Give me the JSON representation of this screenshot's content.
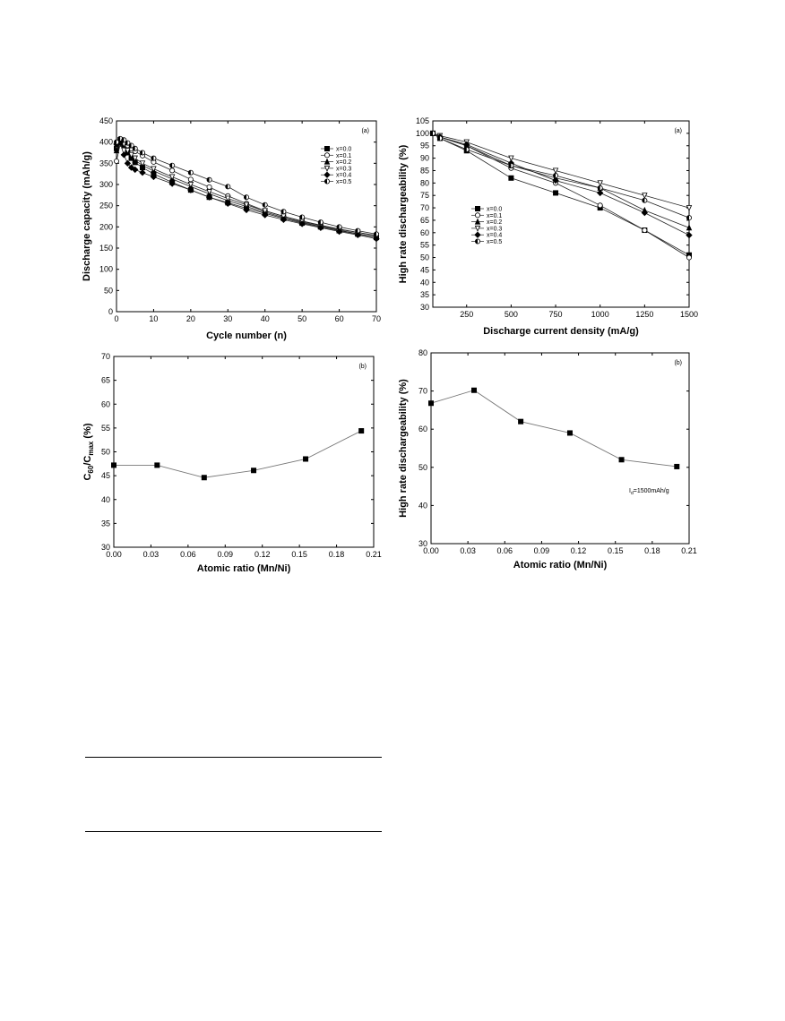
{
  "chart_data": [
    {
      "type": "line",
      "panel_label": "(a)",
      "xlabel": "Cycle number (n)",
      "ylabel": "Discharge capacity (mAh/g)",
      "xlim": [
        0,
        70
      ],
      "ylim": [
        0,
        450
      ],
      "xticks": [
        0,
        10,
        20,
        30,
        40,
        50,
        60,
        70
      ],
      "yticks": [
        0,
        50,
        100,
        150,
        200,
        250,
        300,
        350,
        400,
        450
      ],
      "legend_position": "top-right",
      "series": [
        {
          "name": "x=0.0",
          "marker": "square-filled",
          "x": [
            0,
            1,
            2,
            3,
            4,
            5,
            7,
            10,
            15,
            20,
            25,
            30,
            35,
            40,
            45,
            50,
            55,
            60,
            65,
            70
          ],
          "y": [
            385,
            400,
            395,
            375,
            362,
            352,
            340,
            325,
            305,
            287,
            270,
            257,
            244,
            232,
            220,
            209,
            200,
            191,
            183,
            175
          ]
        },
        {
          "name": "x=0.1",
          "marker": "circle-open",
          "x": [
            0,
            1,
            2,
            3,
            4,
            5,
            7,
            10,
            15,
            20,
            25,
            30,
            35,
            40,
            45,
            50,
            55,
            60,
            65,
            70
          ],
          "y": [
            355,
            395,
            400,
            392,
            385,
            378,
            368,
            353,
            333,
            312,
            294,
            273,
            255,
            238,
            225,
            213,
            203,
            194,
            187,
            180
          ]
        },
        {
          "name": "x=0.2",
          "marker": "triangle-filled",
          "x": [
            0,
            1,
            2,
            3,
            4,
            5,
            7,
            10,
            15,
            20,
            25,
            30,
            35,
            40,
            45,
            50,
            55,
            60,
            65,
            70
          ],
          "y": [
            380,
            398,
            392,
            375,
            365,
            357,
            345,
            332,
            313,
            295,
            278,
            262,
            248,
            235,
            222,
            211,
            201,
            192,
            184,
            176
          ]
        },
        {
          "name": "x=0.3",
          "marker": "triangle-down-open",
          "x": [
            0,
            1,
            2,
            3,
            4,
            5,
            7,
            10,
            15,
            20,
            25,
            30,
            35,
            40,
            45,
            50,
            55,
            60,
            65,
            70
          ],
          "y": [
            390,
            405,
            395,
            380,
            370,
            362,
            350,
            337,
            318,
            300,
            283,
            267,
            252,
            238,
            225,
            214,
            204,
            195,
            187,
            179
          ]
        },
        {
          "name": "x=0.4",
          "marker": "diamond-filled",
          "x": [
            0,
            1,
            2,
            3,
            4,
            5,
            7,
            10,
            15,
            20,
            25,
            30,
            35,
            40,
            45,
            50,
            55,
            60,
            65,
            70
          ],
          "y": [
            395,
            398,
            370,
            350,
            340,
            335,
            328,
            318,
            302,
            287,
            270,
            255,
            240,
            228,
            217,
            207,
            198,
            189,
            181,
            172
          ]
        },
        {
          "name": "x=0.5",
          "marker": "circle-left-open",
          "x": [
            0,
            1,
            2,
            3,
            4,
            5,
            7,
            10,
            15,
            20,
            25,
            30,
            35,
            40,
            45,
            50,
            55,
            60,
            65,
            70
          ],
          "y": [
            400,
            408,
            405,
            398,
            392,
            385,
            375,
            362,
            345,
            328,
            311,
            295,
            270,
            252,
            236,
            223,
            211,
            200,
            191,
            183
          ]
        }
      ]
    },
    {
      "type": "line",
      "panel_label": "(a)",
      "xlabel": "Discharge current density (mA/g)",
      "ylabel": "High rate dischargeability (%)",
      "xlim": [
        60,
        1500
      ],
      "ylim": [
        30,
        105
      ],
      "xticks": [
        250,
        500,
        750,
        1000,
        1250,
        1500
      ],
      "yticks": [
        30,
        35,
        40,
        45,
        50,
        55,
        60,
        65,
        70,
        75,
        80,
        85,
        90,
        95,
        100,
        105
      ],
      "legend_position": "center-left",
      "series": [
        {
          "name": "x=0.0",
          "marker": "square-filled",
          "x": [
            60,
            100,
            250,
            500,
            750,
            1000,
            1250,
            1500
          ],
          "y": [
            100,
            98,
            93,
            82,
            76,
            70,
            61,
            51
          ]
        },
        {
          "name": "x=0.1",
          "marker": "circle-open",
          "x": [
            60,
            100,
            250,
            500,
            750,
            1000,
            1250,
            1500
          ],
          "y": [
            100,
            98.5,
            95,
            86,
            80,
            71,
            61,
            50
          ]
        },
        {
          "name": "x=0.2",
          "marker": "triangle-filled",
          "x": [
            60,
            100,
            250,
            500,
            750,
            1000,
            1250,
            1500
          ],
          "y": [
            100,
            98.5,
            95,
            87,
            82,
            78,
            69,
            62
          ]
        },
        {
          "name": "x=0.3",
          "marker": "triangle-down-open",
          "x": [
            60,
            100,
            250,
            500,
            750,
            1000,
            1250,
            1500
          ],
          "y": [
            100,
            99,
            96.5,
            90,
            85,
            80,
            75,
            70
          ]
        },
        {
          "name": "x=0.4",
          "marker": "diamond-filled",
          "x": [
            60,
            100,
            250,
            500,
            750,
            1000,
            1250,
            1500
          ],
          "y": [
            100,
            98.5,
            95.5,
            88,
            81,
            76,
            68,
            59
          ]
        },
        {
          "name": "x=0.5",
          "marker": "circle-left-open",
          "x": [
            60,
            100,
            250,
            500,
            750,
            1000,
            1250,
            1500
          ],
          "y": [
            100,
            98,
            93.5,
            87,
            83,
            78,
            73,
            66
          ]
        }
      ]
    },
    {
      "type": "line",
      "panel_label": "(b)",
      "xlabel": "Atomic ratio (Mn/Ni)",
      "ylabel_main": "C",
      "ylabel_sub1": "60",
      "ylabel_mid": "/C",
      "ylabel_sub2": "max",
      "ylabel_tail": " (%)",
      "xlim": [
        0,
        0.21
      ],
      "ylim": [
        30,
        70
      ],
      "xticks": [
        "0.00",
        "0.03",
        "0.06",
        "0.09",
        "0.12",
        "0.15",
        "0.18",
        "0.21"
      ],
      "yticks": [
        30,
        35,
        40,
        45,
        50,
        55,
        60,
        65,
        70
      ],
      "series": [
        {
          "marker": "square-filled",
          "x": [
            0.0,
            0.035,
            0.073,
            0.113,
            0.155,
            0.2
          ],
          "y": [
            47.2,
            47.2,
            44.6,
            46.1,
            48.5,
            54.4
          ]
        }
      ]
    },
    {
      "type": "line",
      "panel_label": "(b)",
      "xlabel": "Atomic ratio (Mn/Ni)",
      "ylabel": "High rate dischargeability (%)",
      "xlim": [
        0,
        0.21
      ],
      "ylim": [
        30,
        80
      ],
      "xticks": [
        "0.00",
        "0.03",
        "0.06",
        "0.09",
        "0.12",
        "0.15",
        "0.18",
        "0.21"
      ],
      "yticks": [
        30,
        40,
        50,
        60,
        70,
        80
      ],
      "annotation_main": "I",
      "annotation_sub": "d",
      "annotation_tail": "=1500mAh/g",
      "series": [
        {
          "marker": "square-filled",
          "x": [
            0.0,
            0.035,
            0.073,
            0.113,
            0.155,
            0.2
          ],
          "y": [
            66.8,
            70.2,
            62.0,
            59.0,
            52.0,
            50.2
          ]
        }
      ]
    }
  ]
}
